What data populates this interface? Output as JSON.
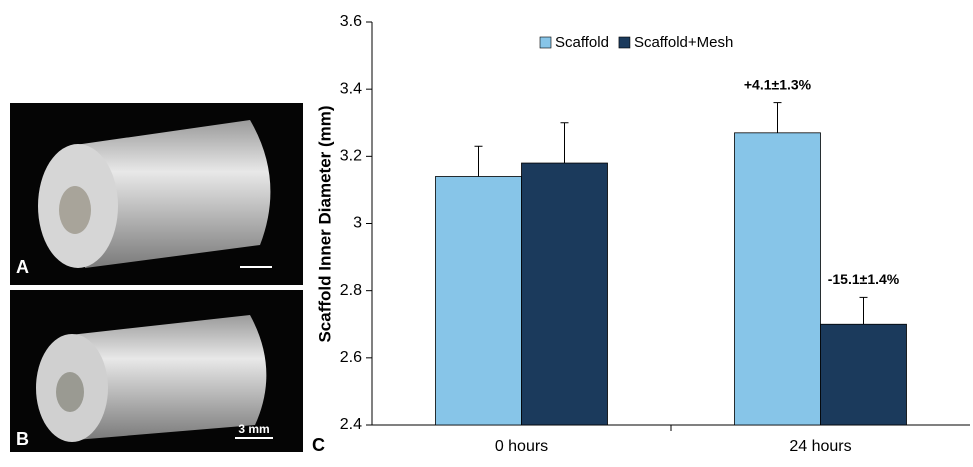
{
  "panels": {
    "a": "A",
    "b": "B",
    "c": "C",
    "scale_bar": "3 mm"
  },
  "chart_data": {
    "type": "bar",
    "y_label": "Scaffold Inner Diameter (mm)",
    "categories": [
      "0 hours",
      "24 hours"
    ],
    "series": [
      {
        "name": "Scaffold",
        "color": "#87c5e8",
        "values": [
          3.14,
          3.27
        ],
        "errors": [
          0.09,
          0.09
        ]
      },
      {
        "name": "Scaffold+Mesh",
        "color": "#1b3a5c",
        "values": [
          3.18,
          2.7
        ],
        "errors": [
          0.12,
          0.08
        ]
      }
    ],
    "annotations": [
      "+4.1±1.3%",
      "-15.1±1.4%"
    ],
    "ylim": [
      2.4,
      3.6
    ],
    "yticks": [
      2.4,
      2.6,
      2.8,
      3,
      3.2,
      3.4,
      3.6
    ],
    "legend": "top"
  }
}
